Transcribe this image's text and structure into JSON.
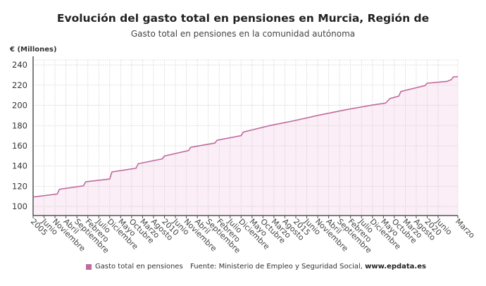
{
  "header": {
    "title": "Evolución del gasto total en pensiones en Murcia, Región de",
    "subtitle": "Gasto total en pensiones en la comunidad autónoma"
  },
  "legend": {
    "label": "Gasto total en pensiones",
    "color": "#c06a9e"
  },
  "footer": {
    "source_label": "Fuente: Ministerio de Empleo y Seguridad Social,",
    "source_url": "www.epdata.es"
  },
  "chart_data": {
    "type": "area",
    "title": "Evolución del gasto total en pensiones en Murcia, Región de",
    "subtitle": "Gasto total en pensiones en la comunidad autónoma",
    "ylabel": "€ (Millones)",
    "xlabel": "",
    "ylim": [
      91,
      245
    ],
    "yticks": [
      100,
      120,
      140,
      160,
      180,
      200,
      220,
      240
    ],
    "grid": true,
    "legend_position": "bottom-left",
    "line_color": "#c06a9e",
    "fill_color": "#fbeef6",
    "xtick_labels": [
      "2005",
      "Junio",
      "Noviembre",
      "Abril",
      "Septiembre",
      "Febrero",
      "Julio",
      "Diciembre",
      "Mayo",
      "Octubre",
      "Marzo",
      "Agosto",
      "2010",
      "Junio",
      "Noviembre",
      "Abril",
      "Septiembre",
      "Febrero",
      "Julio",
      "Diciembre",
      "Mayo",
      "Octubre",
      "Marzo",
      "Agosto",
      "2015",
      "Junio",
      "Noviembre",
      "Abril",
      "Septiembre",
      "Febrero",
      "Julio",
      "Diciembre",
      "Mayo",
      "Octubre",
      "Marzo",
      "Agosto",
      "2020",
      "Junio",
      "Marzo"
    ],
    "xtick_dates": [
      "2005-01",
      "2005-06",
      "2005-11",
      "2006-04",
      "2006-09",
      "2007-02",
      "2007-07",
      "2007-12",
      "2008-05",
      "2008-10",
      "2009-03",
      "2009-08",
      "2010-01",
      "2010-06",
      "2010-11",
      "2011-04",
      "2011-09",
      "2012-02",
      "2012-07",
      "2012-12",
      "2013-05",
      "2013-10",
      "2014-03",
      "2014-08",
      "2015-01",
      "2015-06",
      "2015-11",
      "2016-04",
      "2016-09",
      "2017-02",
      "2017-07",
      "2017-12",
      "2018-05",
      "2018-10",
      "2019-03",
      "2019-08",
      "2020-01",
      "2020-06",
      "2021-03"
    ],
    "series": [
      {
        "name": "Gasto total en pensiones",
        "points": [
          [
            "2005-01",
            109.3
          ],
          [
            "2005-12",
            112.3
          ],
          [
            "2006-01",
            117.0
          ],
          [
            "2006-12",
            120.4
          ],
          [
            "2007-01",
            124.4
          ],
          [
            "2007-12",
            127.2
          ],
          [
            "2008-01",
            134.1
          ],
          [
            "2008-12",
            137.8
          ],
          [
            "2009-01",
            142.3
          ],
          [
            "2009-12",
            147.1
          ],
          [
            "2010-01",
            149.9
          ],
          [
            "2010-12",
            155.3
          ],
          [
            "2011-01",
            158.5
          ],
          [
            "2011-12",
            162.7
          ],
          [
            "2012-01",
            165.5
          ],
          [
            "2012-12",
            170.1
          ],
          [
            "2013-01",
            173.6
          ],
          [
            "2013-12",
            179.4
          ],
          [
            "2014-01",
            180.0
          ],
          [
            "2014-12",
            184.7
          ],
          [
            "2015-12",
            190.5
          ],
          [
            "2016-12",
            195.7
          ],
          [
            "2017-12",
            200.3
          ],
          [
            "2018-06",
            202.2
          ],
          [
            "2018-08",
            206.8
          ],
          [
            "2018-12",
            209.1
          ],
          [
            "2019-01",
            213.8
          ],
          [
            "2019-12",
            219.6
          ],
          [
            "2020-01",
            221.9
          ],
          [
            "2020-10",
            223.7
          ],
          [
            "2020-12",
            225.4
          ],
          [
            "2021-01",
            228.2
          ],
          [
            "2021-03",
            228.4
          ]
        ]
      }
    ]
  }
}
